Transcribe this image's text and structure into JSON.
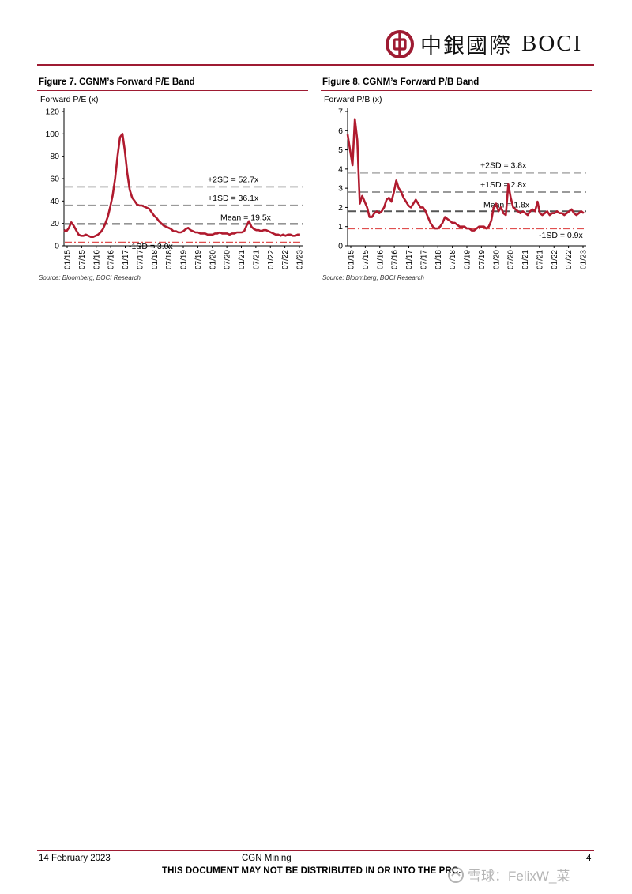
{
  "header": {
    "logo_cn": "中銀國際",
    "logo_en": "BOCI",
    "brand_color": "#9e1b32"
  },
  "figures": [
    {
      "title": "Figure 7. CGNM’s Forward P/E Band",
      "source": "Source: Bloomberg, BOCI Research"
    },
    {
      "title": "Figure 8. CGNM’s Forward P/B Band",
      "source": "Source: Bloomberg, BOCI Research"
    }
  ],
  "chart_data": [
    {
      "type": "line",
      "ylabel": "Forward P/E (x)",
      "ylim": [
        0,
        120
      ],
      "yticks": [
        0,
        20,
        40,
        60,
        80,
        100,
        120
      ],
      "xlim": [
        0,
        98
      ],
      "xtick_labels": [
        "01/15",
        "07/15",
        "01/16",
        "07/16",
        "01/17",
        "07/17",
        "01/18",
        "07/18",
        "01/19",
        "07/19",
        "01/20",
        "07/20",
        "01/21",
        "07/21",
        "01/22",
        "07/22",
        "01/23"
      ],
      "line_color": "#b01a2e",
      "series": [
        {
          "x": [
            0,
            1,
            2,
            3,
            4,
            5,
            6,
            7,
            8,
            9,
            10,
            11,
            12,
            13,
            14,
            15,
            16,
            17,
            18,
            19,
            20,
            21,
            22,
            23,
            24,
            25,
            26,
            27,
            28,
            29,
            30,
            31,
            32,
            33,
            34,
            35,
            36,
            37,
            38,
            39,
            40,
            41,
            42,
            43,
            44,
            45,
            46,
            47,
            48,
            49,
            50,
            51,
            52,
            53,
            54,
            55,
            56,
            57,
            58,
            59,
            60,
            61,
            62,
            63,
            64,
            65,
            66,
            67,
            68,
            69,
            70,
            71,
            72,
            73,
            74,
            75,
            76,
            77,
            78,
            79,
            80,
            81,
            82,
            83,
            84,
            85,
            86,
            87,
            88,
            89,
            90,
            91,
            92,
            93,
            94,
            95,
            96,
            97
          ],
          "values": [
            14,
            13,
            16,
            21,
            18,
            14,
            10,
            9,
            9,
            10,
            9,
            8,
            8,
            9,
            10,
            12,
            15,
            20,
            26,
            35,
            45,
            60,
            80,
            97,
            100,
            85,
            65,
            50,
            43,
            40,
            37,
            36,
            36,
            35,
            34,
            33,
            30,
            27,
            25,
            22,
            20,
            18,
            17,
            16,
            15,
            13,
            13,
            12,
            12,
            13,
            15,
            16,
            14,
            13,
            12,
            12,
            11,
            11,
            11,
            10,
            10,
            10,
            11,
            11,
            12,
            11,
            11,
            11,
            10,
            11,
            11,
            12,
            12,
            12,
            13,
            18,
            22,
            17,
            15,
            14,
            14,
            13,
            14,
            14,
            13,
            12,
            11,
            10,
            10,
            9,
            10,
            9,
            10,
            10,
            9,
            9,
            10,
            10
          ]
        }
      ],
      "bands": [
        {
          "label": "+2SD = 52.7x",
          "value": 52.7,
          "color": "#b5b5b5",
          "style": "dashed"
        },
        {
          "label": "+1SD = 36.1x",
          "value": 36.1,
          "color": "#9a9a9a",
          "style": "dashed"
        },
        {
          "label": "Mean = 19.5x",
          "value": 19.5,
          "color": "#555555",
          "style": "dashed"
        },
        {
          "label": "-1SD = 3.0x",
          "value": 3.0,
          "color": "#e05050",
          "style": "dashdot"
        }
      ]
    },
    {
      "type": "line",
      "ylabel": "Forward P/B (x)",
      "ylim": [
        0,
        7
      ],
      "yticks": [
        0,
        1,
        2,
        3,
        4,
        5,
        6,
        7
      ],
      "xlim": [
        0,
        98
      ],
      "xtick_labels": [
        "01/15",
        "07/15",
        "01/16",
        "07/16",
        "01/17",
        "07/17",
        "01/18",
        "07/18",
        "01/19",
        "07/19",
        "01/20",
        "07/20",
        "01/21",
        "07/21",
        "01/22",
        "07/22",
        "01/23"
      ],
      "line_color": "#b01a2e",
      "series": [
        {
          "x": [
            0,
            1,
            2,
            3,
            4,
            5,
            6,
            7,
            8,
            9,
            10,
            11,
            12,
            13,
            14,
            15,
            16,
            17,
            18,
            19,
            20,
            21,
            22,
            23,
            24,
            25,
            26,
            27,
            28,
            29,
            30,
            31,
            32,
            33,
            34,
            35,
            36,
            37,
            38,
            39,
            40,
            41,
            42,
            43,
            44,
            45,
            46,
            47,
            48,
            49,
            50,
            51,
            52,
            53,
            54,
            55,
            56,
            57,
            58,
            59,
            60,
            61,
            62,
            63,
            64,
            65,
            66,
            67,
            68,
            69,
            70,
            71,
            72,
            73,
            74,
            75,
            76,
            77,
            78,
            79,
            80,
            81,
            82,
            83,
            84,
            85,
            86,
            87,
            88,
            89,
            90,
            91,
            92,
            93,
            94,
            95,
            96,
            97
          ],
          "values": [
            5.8,
            5.0,
            4.2,
            6.6,
            5.5,
            2.2,
            2.6,
            2.3,
            2.0,
            1.5,
            1.5,
            1.7,
            1.8,
            1.7,
            1.8,
            2.0,
            2.4,
            2.5,
            2.3,
            2.8,
            3.4,
            3.0,
            2.8,
            2.5,
            2.3,
            2.1,
            2.0,
            2.2,
            2.4,
            2.2,
            2.0,
            2.0,
            1.8,
            1.5,
            1.2,
            1.0,
            0.9,
            0.9,
            1.0,
            1.2,
            1.5,
            1.4,
            1.3,
            1.2,
            1.2,
            1.1,
            1.0,
            1.0,
            1.0,
            0.9,
            0.9,
            0.8,
            0.8,
            0.9,
            1.0,
            1.0,
            1.0,
            0.9,
            1.0,
            1.3,
            2.0,
            2.2,
            1.8,
            2.0,
            1.7,
            1.6,
            3.2,
            2.5,
            2.0,
            1.9,
            1.8,
            1.7,
            1.8,
            1.7,
            1.6,
            1.8,
            1.9,
            1.8,
            2.3,
            1.7,
            1.6,
            1.7,
            1.8,
            1.6,
            1.7,
            1.7,
            1.8,
            1.7,
            1.7,
            1.6,
            1.7,
            1.8,
            1.9,
            1.7,
            1.6,
            1.7,
            1.8,
            1.7
          ]
        }
      ],
      "bands": [
        {
          "label": "+2SD = 3.8x",
          "value": 3.8,
          "color": "#b5b5b5",
          "style": "dashed"
        },
        {
          "label": "+1SD = 2.8x",
          "value": 2.8,
          "color": "#9a9a9a",
          "style": "dashed"
        },
        {
          "label": "Mean = 1.8x",
          "value": 1.8,
          "color": "#555555",
          "style": "dashed"
        },
        {
          "label": "-1SD = 0.9x",
          "value": 0.9,
          "color": "#e05050",
          "style": "dashdot"
        }
      ]
    }
  ],
  "footer": {
    "date": "14 February 2023",
    "company": "CGN Mining",
    "page": "4",
    "disclaimer": "THIS DOCUMENT MAY NOT BE DISTRIBUTED IN OR INTO THE PRC.",
    "watermark": "雪球：FelixW_菜"
  }
}
